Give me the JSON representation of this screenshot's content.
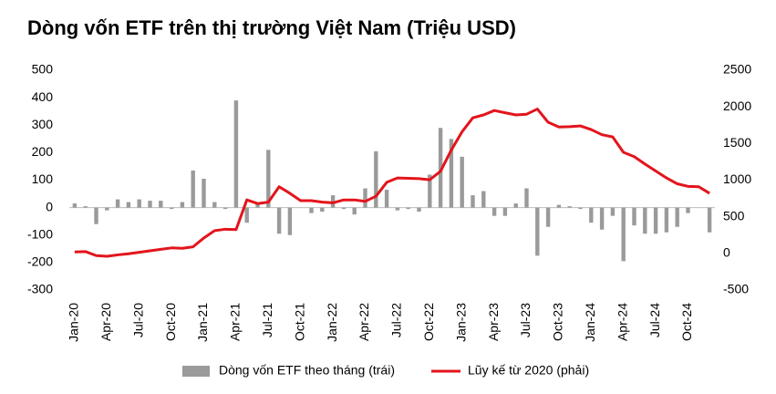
{
  "chart_data": {
    "type": "bar-line",
    "title": "Dòng vốn ETF trên thị trường Việt Nam (Triệu USD)",
    "categories": [
      "Jan-20",
      null,
      null,
      "Apr-20",
      null,
      null,
      "Jul-20",
      null,
      null,
      "Oct-20",
      null,
      null,
      "Jan-21",
      null,
      null,
      "Apr-21",
      null,
      null,
      "Jul-21",
      null,
      null,
      "Oct-21",
      null,
      null,
      "Jan-22",
      null,
      null,
      "Apr-22",
      null,
      null,
      "Jul-22",
      null,
      null,
      "Oct-22",
      null,
      null,
      "Jan-23",
      null,
      null,
      "Apr-23",
      null,
      null,
      "Jul-23",
      null,
      null,
      "Oct-23",
      null,
      null,
      "Jan-24",
      null,
      null,
      "Apr-24",
      null,
      null,
      "Jul-24",
      null,
      null,
      "Oct-24",
      null,
      null
    ],
    "series": [
      {
        "name": "Dòng vốn ETF theo tháng (trái)",
        "type": "bar",
        "color": "#9a9a9a",
        "axis": "y",
        "values": [
          15,
          5,
          -60,
          -10,
          30,
          20,
          30,
          25,
          25,
          -5,
          20,
          135,
          105,
          20,
          -5,
          390,
          -55,
          15,
          210,
          -95,
          -100,
          0,
          -20,
          -15,
          45,
          -5,
          -25,
          70,
          205,
          65,
          -10,
          -5,
          -15,
          120,
          290,
          250,
          185,
          45,
          60,
          -30,
          -30,
          15,
          70,
          -175,
          -70,
          10,
          5,
          -5,
          -55,
          -80,
          -30,
          -195,
          -65,
          -95,
          -95,
          -90,
          -70,
          -20,
          0,
          -90
        ]
      },
      {
        "name": "Lũy kế từ 2020 (phải)",
        "type": "line",
        "color": "#e3141c",
        "axis": "y2",
        "values": [
          20,
          25,
          -30,
          -40,
          -20,
          -5,
          15,
          35,
          55,
          75,
          70,
          90,
          210,
          310,
          330,
          325,
          730,
          680,
          700,
          910,
          820,
          720,
          720,
          700,
          690,
          730,
          730,
          710,
          780,
          970,
          1030,
          1025,
          1020,
          1005,
          1120,
          1410,
          1660,
          1850,
          1890,
          1950,
          1920,
          1890,
          1900,
          1970,
          1790,
          1725,
          1730,
          1740,
          1690,
          1620,
          1590,
          1380,
          1320,
          1220,
          1125,
          1030,
          950,
          915,
          910,
          820
        ]
      }
    ],
    "ylim": [
      -300,
      500
    ],
    "yticks": [
      -300,
      -200,
      -100,
      0,
      100,
      200,
      300,
      400,
      500
    ],
    "y2lim": [
      -500,
      2500
    ],
    "y2ticks": [
      -500,
      0,
      500,
      1000,
      1500,
      2000,
      2500
    ],
    "legend": "bottom"
  }
}
